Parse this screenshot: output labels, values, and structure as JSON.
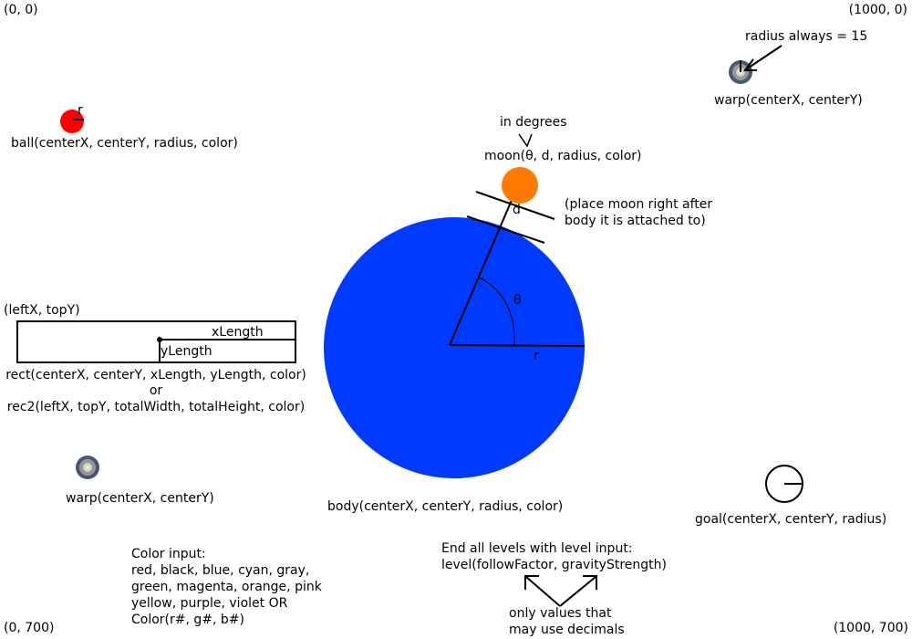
{
  "corners": {
    "top_left": "(0, 0)",
    "top_right": "(1000, 0)",
    "bottom_left": "(0, 700)",
    "bottom_right": "(1000, 700)"
  },
  "ball": {
    "radius_label": "r",
    "caption": "ball(centerX, centerY, radius, color)",
    "color": "#ff0000"
  },
  "warp_top": {
    "note": "radius always = 15",
    "caption": "warp(centerX, centerY)"
  },
  "moon": {
    "degrees_note": "in degrees",
    "caption": "moon(θ, d, radius, color)",
    "d_label": "d",
    "placement_note_1": "(place moon right after",
    "placement_note_2": "body it is attached to)",
    "color": "#ff7a00"
  },
  "body": {
    "theta_label": "θ",
    "radius_label": "r",
    "caption": "body(centerX, centerY, radius, color)",
    "color": "#0039ff"
  },
  "rect": {
    "corner_label": "(leftX, topY)",
    "x_length_label": "xLength",
    "y_length_label": "yLength",
    "caption_1": "rect(centerX, centerY, xLength, yLength, color)",
    "caption_or": "or",
    "caption_2": "rec2(leftX, topY, totalWidth, totalHeight, color)"
  },
  "warp_bottom": {
    "caption": "warp(centerX, centerY)"
  },
  "goal": {
    "caption": "goal(centerX, centerY, radius)"
  },
  "color_input": {
    "lines": [
      "Color input:",
      "red, black, blue, cyan, gray,",
      "green, magenta, orange, pink",
      "yellow, purple, violet OR",
      "Color(r#, g#, b#)"
    ]
  },
  "level": {
    "line_1": "End all levels with level input:",
    "line_2": "level(followFactor, gravityStrength)",
    "decimal_note_1": "only values that",
    "decimal_note_2": "may use decimals"
  }
}
